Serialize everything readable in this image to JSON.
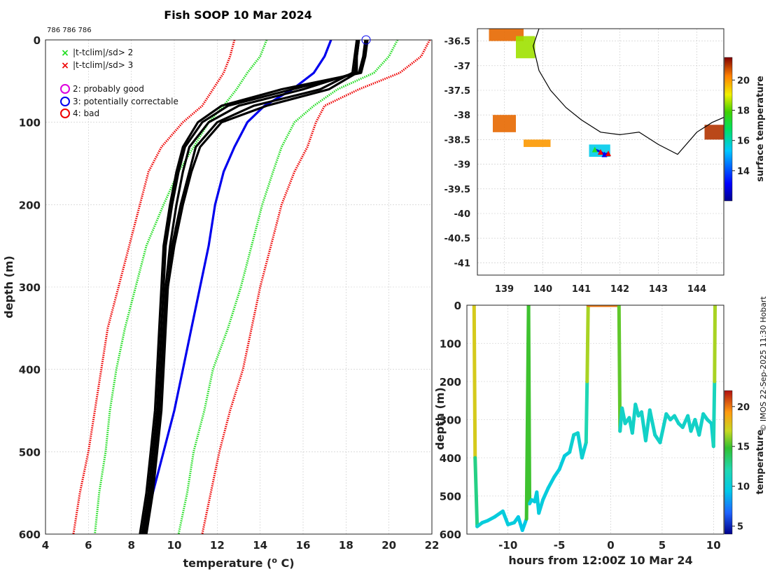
{
  "title": "Fish SOOP 10 Mar 2024",
  "cast_ids": "786 786 786",
  "credit": "© IMOS 22-Sep-2025 11:30 Hobart",
  "colors": {
    "profile": "#000000",
    "clim_mean": "#0000ee",
    "clim_2sd": "#22dd22",
    "clim_3sd": "#ee0000",
    "flag_good": "#dd00dd",
    "flag_correctable": "#0000ee",
    "flag_bad": "#ee0000",
    "land": "#000000"
  },
  "legend": {
    "sd2": "|t-tclim|/sd> 2",
    "sd3": "|t-tclim|/sd> 3",
    "flag2": "2: probably good",
    "flag3": "3: potentially correctable",
    "flag4": "4: bad"
  },
  "chart_data": [
    {
      "type": "line",
      "name": "profile",
      "xlabel": "temperature (° C)",
      "ylabel": "depth (m)",
      "xlim": [
        4,
        22
      ],
      "ylim": [
        600,
        0
      ],
      "xticks": [
        4,
        6,
        8,
        10,
        12,
        14,
        16,
        18,
        20,
        22
      ],
      "yticks": [
        0,
        100,
        200,
        300,
        400,
        500,
        600
      ],
      "grid": true,
      "legend": "top-left",
      "depth": [
        0,
        20,
        40,
        60,
        80,
        100,
        130,
        160,
        200,
        250,
        300,
        350,
        400,
        450,
        500,
        550,
        600
      ],
      "series": [
        {
          "name": "climatology mean",
          "style": "solid",
          "temps": [
            17.3,
            17.0,
            16.5,
            15.5,
            14.2,
            13.4,
            12.8,
            12.3,
            11.9,
            11.6,
            11.2,
            10.8,
            10.4,
            10.0,
            9.5,
            9.0,
            8.5
          ]
        },
        {
          "name": "mean +2 sd",
          "style": "dotted",
          "temps": [
            20.4,
            20.0,
            19.3,
            17.6,
            16.5,
            15.6,
            15.0,
            14.6,
            14.1,
            13.6,
            13.1,
            12.5,
            11.8,
            11.4,
            10.9,
            10.6,
            10.2
          ]
        },
        {
          "name": "mean -2 sd",
          "style": "dotted",
          "temps": [
            14.3,
            14.0,
            13.4,
            12.9,
            12.3,
            11.6,
            10.9,
            10.2,
            9.5,
            8.7,
            8.2,
            7.7,
            7.3,
            7.0,
            6.8,
            6.5,
            6.3
          ]
        },
        {
          "name": "mean +3 sd",
          "style": "dotted",
          "temps": [
            21.9,
            21.5,
            20.5,
            18.6,
            17.0,
            16.6,
            16.2,
            15.6,
            15.0,
            14.5,
            14.0,
            13.6,
            13.2,
            12.6,
            12.1,
            11.7,
            11.3
          ]
        },
        {
          "name": "mean -3 sd",
          "style": "dotted",
          "temps": [
            12.8,
            12.6,
            12.3,
            11.8,
            11.3,
            10.4,
            9.4,
            8.8,
            8.4,
            7.9,
            7.4,
            6.9,
            6.6,
            6.3,
            6.0,
            5.6,
            5.3
          ]
        },
        {
          "name": "observed profile 1",
          "style": "solid",
          "temps": [
            18.6,
            18.5,
            18.4,
            16.0,
            13.0,
            11.6,
            10.7,
            10.4,
            10.1,
            9.8,
            9.6,
            9.5,
            9.4,
            9.3,
            9.1,
            8.9,
            8.6
          ]
        },
        {
          "name": "observed profile 2",
          "style": "solid",
          "temps": [
            18.9,
            18.8,
            18.6,
            15.5,
            12.5,
            11.3,
            10.5,
            10.2,
            9.9,
            9.6,
            9.5,
            9.4,
            9.3,
            9.2,
            9.0,
            8.8,
            8.5
          ]
        },
        {
          "name": "observed profile 3",
          "style": "solid",
          "temps": [
            18.5,
            18.4,
            18.3,
            16.8,
            13.7,
            12.0,
            11.0,
            10.7,
            10.3,
            9.9,
            9.7,
            9.6,
            9.5,
            9.4,
            9.2,
            9.0,
            8.7
          ]
        },
        {
          "name": "observed profile 4",
          "style": "solid",
          "temps": [
            19.0,
            18.9,
            18.7,
            15.0,
            12.2,
            11.1,
            10.4,
            10.1,
            9.8,
            9.5,
            9.4,
            9.3,
            9.2,
            9.1,
            8.9,
            8.7,
            8.4
          ]
        },
        {
          "name": "observed profile 5",
          "style": "solid",
          "temps": [
            18.6,
            18.5,
            18.5,
            17.2,
            14.3,
            12.2,
            11.2,
            10.8,
            10.4,
            10.0,
            9.7,
            9.5,
            9.4,
            9.3,
            9.1,
            8.9,
            8.6
          ]
        }
      ]
    },
    {
      "type": "heatmap",
      "name": "map",
      "colorbar_label": "surface temperature",
      "colorbar_ticks": [
        14,
        16,
        18,
        20
      ],
      "clim": [
        12,
        21.5
      ],
      "lon_range": [
        138.3,
        144.7
      ],
      "lat_range": [
        -41.25,
        -36.25
      ],
      "lon_ticks": [
        139,
        140,
        141,
        142,
        143,
        144
      ],
      "lat_ticks": [
        -36.5,
        -37,
        -37.5,
        -38,
        -38.5,
        -39,
        -39.5,
        -40,
        -40.5,
        -41
      ],
      "coastline": [
        [
          139.9,
          -36.25
        ],
        [
          139.75,
          -36.6
        ],
        [
          139.9,
          -37.1
        ],
        [
          140.2,
          -37.5
        ],
        [
          140.6,
          -37.85
        ],
        [
          141.0,
          -38.1
        ],
        [
          141.5,
          -38.35
        ],
        [
          142.0,
          -38.4
        ],
        [
          142.5,
          -38.35
        ],
        [
          143.0,
          -38.6
        ],
        [
          143.5,
          -38.8
        ],
        [
          144.0,
          -38.35
        ],
        [
          144.4,
          -38.15
        ],
        [
          144.7,
          -38.05
        ]
      ],
      "sst_patches": [
        {
          "lon": [
            138.6,
            139.5
          ],
          "lat": [
            -36.25,
            -36.5
          ],
          "t": 20.5
        },
        {
          "lon": [
            139.3,
            139.8
          ],
          "lat": [
            -36.4,
            -36.85
          ],
          "t": 18.5
        },
        {
          "lon": [
            138.7,
            139.3
          ],
          "lat": [
            -38.0,
            -38.35
          ],
          "t": 20.5
        },
        {
          "lon": [
            139.5,
            140.2
          ],
          "lat": [
            -38.5,
            -38.65
          ],
          "t": 20.0
        },
        {
          "lon": [
            144.2,
            144.7
          ],
          "lat": [
            -38.2,
            -38.5
          ],
          "t": 21.0
        },
        {
          "lon": [
            141.2,
            141.75
          ],
          "lat": [
            -38.6,
            -38.85
          ],
          "t": 15.5
        }
      ],
      "cast_positions": [
        [
          141.35,
          -38.7
        ],
        [
          141.5,
          -38.75
        ],
        [
          141.6,
          -38.8
        ],
        [
          141.7,
          -38.78
        ]
      ]
    },
    {
      "type": "line",
      "name": "section",
      "xlabel": "hours from 12:00Z 10 Mar 24",
      "ylabel": "depth (m)",
      "colorbar_label": "temperature",
      "colorbar_ticks": [
        5,
        10,
        15,
        20
      ],
      "clim": [
        4,
        22
      ],
      "xlim": [
        -14,
        11
      ],
      "ylim": [
        600,
        0
      ],
      "xticks": [
        -10,
        -5,
        0,
        5,
        10
      ],
      "yticks": [
        0,
        100,
        200,
        300,
        400,
        500,
        600
      ],
      "hours": [
        -13.3,
        -13.2,
        -13.0,
        -12.5,
        -12.0,
        -11.3,
        -10.5,
        -10.0,
        -9.4,
        -9.0,
        -8.6,
        -8.2,
        -8.0,
        -7.9,
        -7.7,
        -7.4,
        -7.2,
        -7.0,
        -6.6,
        -6.1,
        -5.5,
        -5.0,
        -4.5,
        -4.0,
        -3.6,
        -3.2,
        -2.8,
        -2.4,
        -2.3,
        -2.2,
        0.8,
        0.9,
        1.1,
        1.4,
        1.8,
        2.1,
        2.4,
        2.7,
        3.0,
        3.4,
        3.8,
        4.3,
        4.8,
        5.4,
        5.8,
        6.2,
        6.6,
        7.0,
        7.5,
        7.8,
        8.2,
        8.6,
        9.0,
        9.4,
        9.8,
        10.0,
        10.1,
        10.15
      ],
      "depths": [
        0,
        400,
        580,
        570,
        565,
        555,
        540,
        575,
        570,
        555,
        590,
        560,
        0,
        520,
        510,
        515,
        490,
        545,
        510,
        480,
        450,
        430,
        395,
        385,
        340,
        335,
        400,
        360,
        200,
        0,
        0,
        330,
        270,
        310,
        295,
        335,
        260,
        290,
        280,
        355,
        275,
        340,
        360,
        285,
        300,
        290,
        310,
        320,
        290,
        330,
        300,
        340,
        285,
        300,
        310,
        370,
        200,
        0
      ],
      "temps": [
        20,
        15,
        11,
        10,
        10,
        10,
        10,
        10,
        10,
        10,
        9,
        10,
        20,
        10,
        10,
        10,
        10,
        10,
        10,
        10,
        10,
        10,
        10,
        10,
        11,
        11,
        10,
        11,
        13,
        20,
        20,
        11,
        11,
        11,
        11,
        11,
        11,
        11,
        11,
        11,
        11,
        11,
        11,
        11,
        11,
        11,
        11,
        11,
        11,
        11,
        11,
        11,
        11,
        11,
        11,
        10,
        13,
        20
      ]
    }
  ]
}
